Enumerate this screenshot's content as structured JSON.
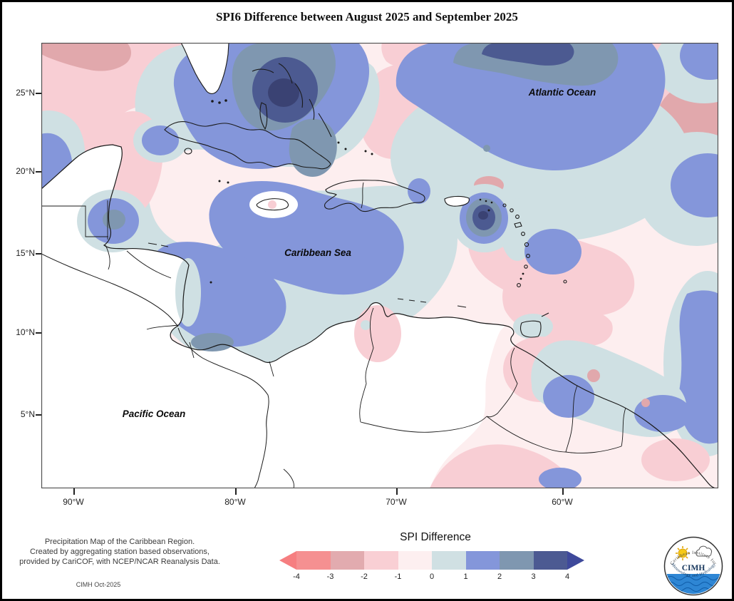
{
  "title": "SPI6 Difference between August 2025 and September 2025",
  "map": {
    "ocean_labels": {
      "atlantic": "Atlantic Ocean",
      "caribbean": "Caribbean Sea",
      "pacific": "Pacific Ocean"
    },
    "y_axis": {
      "ticks": [
        "25°N",
        "20°N",
        "15°N",
        "10°N",
        "5°N"
      ]
    },
    "x_axis": {
      "ticks": [
        "90°W",
        "80°W",
        "70°W",
        "60°W"
      ]
    }
  },
  "colorbar": {
    "title": "SPI Difference",
    "tick_labels": [
      "-4",
      "-3",
      "-2",
      "-1",
      "0",
      "1",
      "2",
      "3",
      "4"
    ],
    "segments": [
      {
        "label": "-4 to -3",
        "color": "#f59091"
      },
      {
        "label": "-3 to -2",
        "color": "#e2abaf"
      },
      {
        "label": "-2 to -1",
        "color": "#f9cfd4"
      },
      {
        "label": "-1 to 0",
        "color": "#fdeff0"
      },
      {
        "label": "0 to 1",
        "color": "#d0e0e3"
      },
      {
        "label": "1 to 2",
        "color": "#8496da"
      },
      {
        "label": "2 to 3",
        "color": "#7f97b0"
      },
      {
        "label": "3 to 4",
        "color": "#4c5a92"
      }
    ],
    "left_arrow_color": "#f67e80",
    "right_arrow_color": "#3e499b"
  },
  "footer": {
    "line1": "Precipitation Map of the Caribbean Region.",
    "line2": "Created by aggregating station based observations,",
    "line3": "provided by CariCOF, with NCEP/NCAR Reanalysis Data.",
    "credit": "CIMH Oct-2025"
  },
  "logo": {
    "org": "CIMH",
    "arc_top": "Caribbean Institute for",
    "arc_bottom": "Meteorology and Hydrology"
  }
}
